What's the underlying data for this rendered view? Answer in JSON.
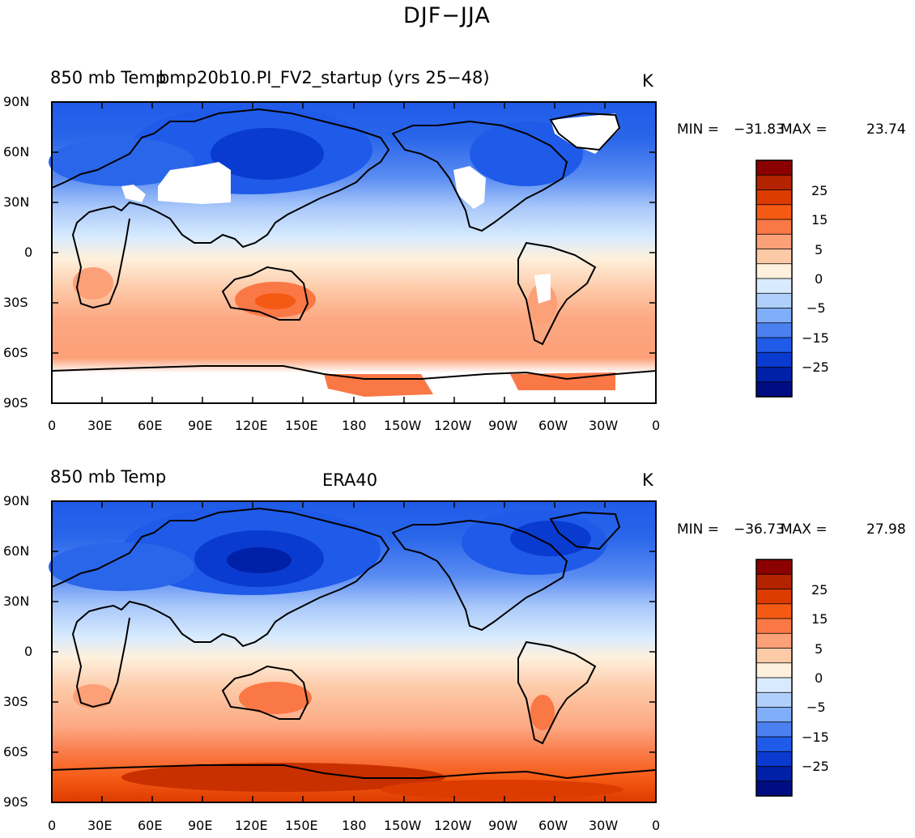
{
  "title": "DJF−JJA",
  "panels": [
    {
      "left_title": "850 mb Temp",
      "center_title": "bmp20b10.PI_FV2_startup (yrs 25−48)",
      "units": "K",
      "min_label": "MIN =",
      "min_value": "−31.83",
      "max_label": "MAX =",
      "max_value": "23.74"
    },
    {
      "left_title": "850 mb Temp",
      "center_title": "ERA40",
      "units": "K",
      "min_label": "MIN =",
      "min_value": "−36.73",
      "max_label": "MAX =",
      "max_value": "27.98"
    }
  ],
  "lat_ticks": [
    "90N",
    "60N",
    "30N",
    "0",
    "30S",
    "60S",
    "90S"
  ],
  "lon_ticks": [
    "0",
    "30E",
    "60E",
    "90E",
    "120E",
    "150E",
    "180",
    "150W",
    "120W",
    "90W",
    "60W",
    "30W",
    "0"
  ],
  "colorbar": {
    "labels": [
      "25",
      "15",
      "5",
      "0",
      "−5",
      "−15",
      "−25"
    ],
    "colors": [
      "#8b0000",
      "#b42300",
      "#dc3c00",
      "#f55a14",
      "#fa7846",
      "#fca078",
      "#fdcaa8",
      "#fef0dc",
      "#d8ebfe",
      "#b0d0fb",
      "#80aef8",
      "#4a80f0",
      "#1f5be8",
      "#0a3bd0",
      "#0020a8",
      "#000c82"
    ]
  },
  "chart_data": [
    {
      "type": "heatmap",
      "title": "bmp20b10.PI_FV2_startup (yrs 25−48)",
      "variable": "850 mb Temp",
      "units": "K",
      "min": -31.83,
      "max": 23.74,
      "levels": [
        -35,
        -30,
        -25,
        -20,
        -15,
        -10,
        -5,
        0,
        5,
        10,
        15,
        20,
        25,
        30,
        35
      ]
    },
    {
      "type": "heatmap",
      "title": "ERA40",
      "variable": "850 mb Temp",
      "units": "K",
      "min": -36.73,
      "max": 27.98,
      "levels": [
        -35,
        -30,
        -25,
        -20,
        -15,
        -10,
        -5,
        0,
        5,
        10,
        15,
        20,
        25,
        30,
        35
      ]
    }
  ]
}
